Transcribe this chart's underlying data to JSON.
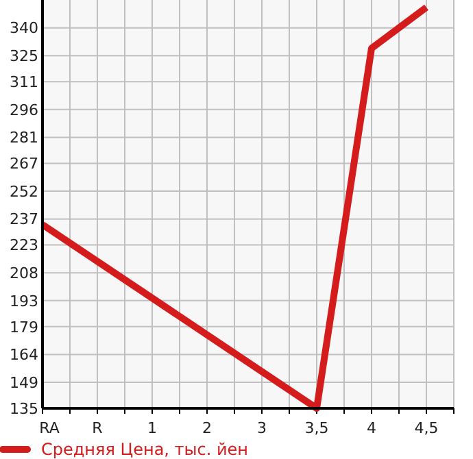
{
  "chart_data": {
    "type": "line",
    "categories": [
      "RA",
      "R",
      "1",
      "2",
      "3",
      "3,5",
      "4",
      "4,5"
    ],
    "series": [
      {
        "name": "Средняя Цена, тыс. йен",
        "color": "#d41c1c",
        "values": [
          234,
          null,
          null,
          null,
          null,
          135,
          329,
          351
        ]
      }
    ],
    "ylim": [
      135,
      355
    ],
    "yticks": [
      135,
      149,
      164,
      179,
      193,
      208,
      223,
      237,
      252,
      267,
      281,
      296,
      311,
      325,
      340
    ],
    "grid": true,
    "legend": "bottom",
    "marker": "none"
  }
}
